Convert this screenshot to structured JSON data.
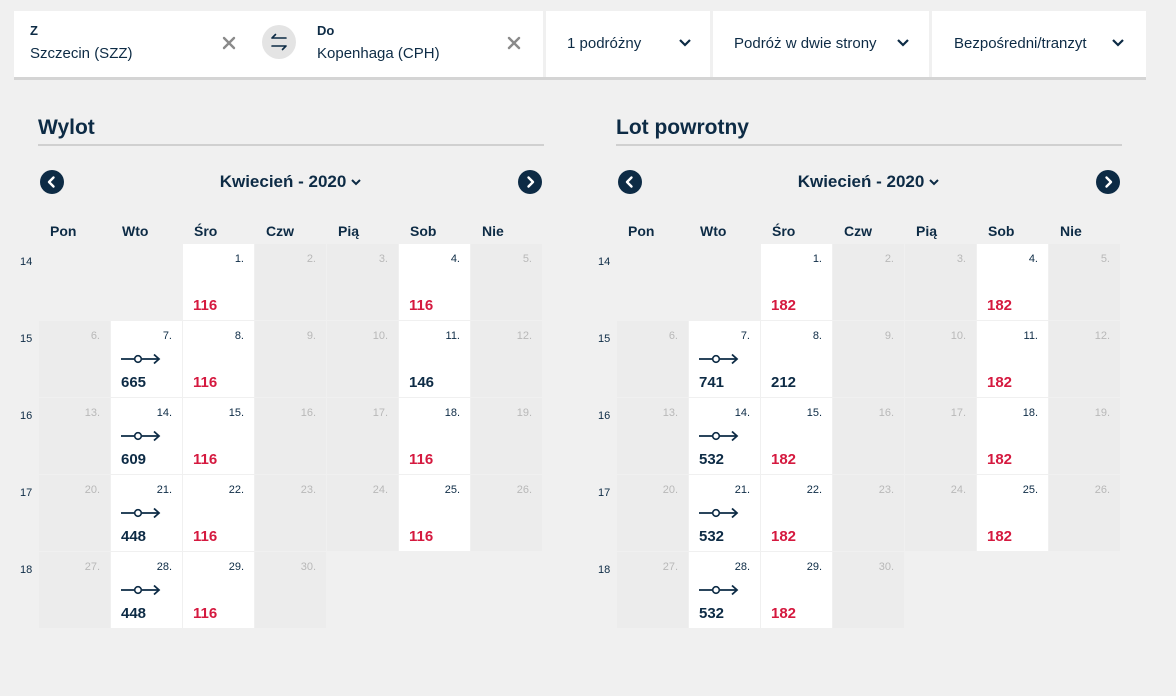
{
  "search": {
    "from_label": "Z",
    "from_value": "Szczecin (SZZ)",
    "to_label": "Do",
    "to_value": "Kopenhaga (CPH)",
    "passengers": "1 podróżny",
    "trip_type": "Podróż w dwie strony",
    "route_type": "Bezpośredni/tranzyt"
  },
  "weekdays": [
    "Pon",
    "Wto",
    "Śro",
    "Czw",
    "Pią",
    "Sob",
    "Nie"
  ],
  "calendars": [
    {
      "title": "Wylot",
      "month": "Kwiecień - 2020",
      "weeks": [
        {
          "num": "14",
          "days": [
            {
              "d": "",
              "st": "empty"
            },
            {
              "d": "",
              "st": "empty"
            },
            {
              "d": "1.",
              "st": "av",
              "price": "116",
              "color": "red"
            },
            {
              "d": "2.",
              "st": "na"
            },
            {
              "d": "3.",
              "st": "na"
            },
            {
              "d": "4.",
              "st": "av",
              "price": "116",
              "color": "red"
            },
            {
              "d": "5.",
              "st": "na"
            }
          ]
        },
        {
          "num": "15",
          "days": [
            {
              "d": "6.",
              "st": "na"
            },
            {
              "d": "7.",
              "st": "av",
              "price": "665",
              "color": "dark",
              "transfer": true
            },
            {
              "d": "8.",
              "st": "av",
              "price": "116",
              "color": "red"
            },
            {
              "d": "9.",
              "st": "na"
            },
            {
              "d": "10.",
              "st": "na"
            },
            {
              "d": "11.",
              "st": "av",
              "price": "146",
              "color": "dark"
            },
            {
              "d": "12.",
              "st": "na"
            }
          ]
        },
        {
          "num": "16",
          "days": [
            {
              "d": "13.",
              "st": "na"
            },
            {
              "d": "14.",
              "st": "av",
              "price": "609",
              "color": "dark",
              "transfer": true
            },
            {
              "d": "15.",
              "st": "av",
              "price": "116",
              "color": "red"
            },
            {
              "d": "16.",
              "st": "na"
            },
            {
              "d": "17.",
              "st": "na"
            },
            {
              "d": "18.",
              "st": "av",
              "price": "116",
              "color": "red"
            },
            {
              "d": "19.",
              "st": "na"
            }
          ]
        },
        {
          "num": "17",
          "days": [
            {
              "d": "20.",
              "st": "na"
            },
            {
              "d": "21.",
              "st": "av",
              "price": "448",
              "color": "dark",
              "transfer": true
            },
            {
              "d": "22.",
              "st": "av",
              "price": "116",
              "color": "red"
            },
            {
              "d": "23.",
              "st": "na"
            },
            {
              "d": "24.",
              "st": "na"
            },
            {
              "d": "25.",
              "st": "av",
              "price": "116",
              "color": "red"
            },
            {
              "d": "26.",
              "st": "na"
            }
          ]
        },
        {
          "num": "18",
          "days": [
            {
              "d": "27.",
              "st": "na"
            },
            {
              "d": "28.",
              "st": "av",
              "price": "448",
              "color": "dark",
              "transfer": true
            },
            {
              "d": "29.",
              "st": "av",
              "price": "116",
              "color": "red"
            },
            {
              "d": "30.",
              "st": "na"
            },
            {
              "d": "",
              "st": "empty"
            },
            {
              "d": "",
              "st": "empty"
            },
            {
              "d": "",
              "st": "empty"
            }
          ]
        }
      ]
    },
    {
      "title": "Lot powrotny",
      "month": "Kwiecień - 2020",
      "weeks": [
        {
          "num": "14",
          "days": [
            {
              "d": "",
              "st": "empty"
            },
            {
              "d": "",
              "st": "empty"
            },
            {
              "d": "1.",
              "st": "av",
              "price": "182",
              "color": "red"
            },
            {
              "d": "2.",
              "st": "na"
            },
            {
              "d": "3.",
              "st": "na"
            },
            {
              "d": "4.",
              "st": "av",
              "price": "182",
              "color": "red"
            },
            {
              "d": "5.",
              "st": "na"
            }
          ]
        },
        {
          "num": "15",
          "days": [
            {
              "d": "6.",
              "st": "na"
            },
            {
              "d": "7.",
              "st": "av",
              "price": "741",
              "color": "dark",
              "transfer": true
            },
            {
              "d": "8.",
              "st": "av",
              "price": "212",
              "color": "dark"
            },
            {
              "d": "9.",
              "st": "na"
            },
            {
              "d": "10.",
              "st": "na"
            },
            {
              "d": "11.",
              "st": "av",
              "price": "182",
              "color": "red"
            },
            {
              "d": "12.",
              "st": "na"
            }
          ]
        },
        {
          "num": "16",
          "days": [
            {
              "d": "13.",
              "st": "na"
            },
            {
              "d": "14.",
              "st": "av",
              "price": "532",
              "color": "dark",
              "transfer": true
            },
            {
              "d": "15.",
              "st": "av",
              "price": "182",
              "color": "red"
            },
            {
              "d": "16.",
              "st": "na"
            },
            {
              "d": "17.",
              "st": "na"
            },
            {
              "d": "18.",
              "st": "av",
              "price": "182",
              "color": "red"
            },
            {
              "d": "19.",
              "st": "na"
            }
          ]
        },
        {
          "num": "17",
          "days": [
            {
              "d": "20.",
              "st": "na"
            },
            {
              "d": "21.",
              "st": "av",
              "price": "532",
              "color": "dark",
              "transfer": true
            },
            {
              "d": "22.",
              "st": "av",
              "price": "182",
              "color": "red"
            },
            {
              "d": "23.",
              "st": "na"
            },
            {
              "d": "24.",
              "st": "na"
            },
            {
              "d": "25.",
              "st": "av",
              "price": "182",
              "color": "red"
            },
            {
              "d": "26.",
              "st": "na"
            }
          ]
        },
        {
          "num": "18",
          "days": [
            {
              "d": "27.",
              "st": "na"
            },
            {
              "d": "28.",
              "st": "av",
              "price": "532",
              "color": "dark",
              "transfer": true
            },
            {
              "d": "29.",
              "st": "av",
              "price": "182",
              "color": "red"
            },
            {
              "d": "30.",
              "st": "na"
            },
            {
              "d": "",
              "st": "empty"
            },
            {
              "d": "",
              "st": "empty"
            },
            {
              "d": "",
              "st": "empty"
            }
          ]
        }
      ]
    }
  ],
  "colors": {
    "primary": "#0d2b45",
    "price_low": "#d5193f",
    "unavailable_bg": "#ececec"
  },
  "icons": {
    "transfer": "transfer-stop-icon",
    "clear": "close-icon",
    "swap": "swap-icon",
    "prev": "chevron-left-icon",
    "next": "chevron-right-icon"
  }
}
